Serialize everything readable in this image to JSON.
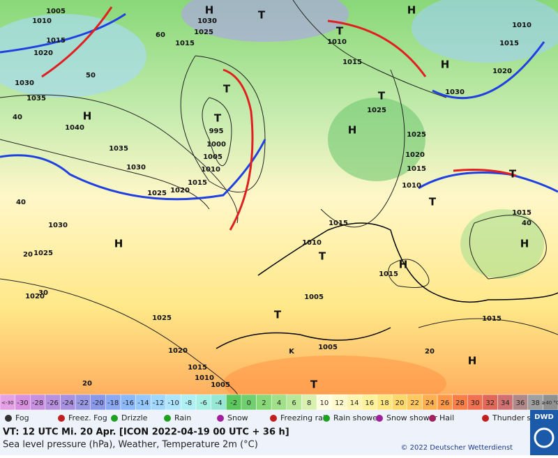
{
  "map": {
    "labels": [
      "H",
      "T",
      "H",
      "T",
      "1005",
      "1010",
      "1015",
      "1020",
      "1030",
      "1025",
      "1015",
      "1010",
      "1015",
      "1010",
      "1015",
      "1020",
      "1030",
      "H",
      "1030",
      "1035",
      "H",
      "1040",
      "1035",
      "1030",
      "1025",
      "1020",
      "T",
      "T",
      "995",
      "1000",
      "1005",
      "1010",
      "1015",
      "T",
      "1025",
      "H",
      "1025",
      "1020",
      "1015",
      "1010",
      "T",
      "T",
      "1030",
      "1025",
      "H",
      "1015",
      "1010",
      "T",
      "H",
      "1015",
      "1015",
      "H",
      "1005",
      "T",
      "1015",
      "1025",
      "1020",
      "1015",
      "1010",
      "1005",
      "1005",
      "K",
      "H",
      "T",
      "1020",
      "40",
      "50",
      "60",
      "40",
      "30",
      "20",
      "20",
      "40",
      "20"
    ]
  },
  "temperature_scale": {
    "labels": [
      "<-30",
      -30,
      -28,
      -26,
      -24,
      -22,
      -20,
      -18,
      -16,
      -14,
      -12,
      -10,
      -8,
      -6,
      -4,
      -2,
      0,
      2,
      4,
      6,
      8,
      10,
      12,
      14,
      16,
      18,
      20,
      22,
      24,
      26,
      28,
      30,
      32,
      34,
      36,
      38,
      "≥40 °C"
    ],
    "colors": [
      "#e6a0e6",
      "#d890e0",
      "#c890e0",
      "#b890e0",
      "#a890e0",
      "#9898e4",
      "#8a98ec",
      "#8aa8f4",
      "#8cb8fc",
      "#94c8ff",
      "#a0d8ff",
      "#aee6ff",
      "#aef0f4",
      "#a6f0e4",
      "#96e8d4",
      "#5cc85c",
      "#70d070",
      "#88d878",
      "#a0e088",
      "#b8e898",
      "#d8f0b0",
      "#ffffe0",
      "#fffacc",
      "#fff4b0",
      "#fff09a",
      "#ffe680",
      "#ffd86c",
      "#ffc860",
      "#ffb050",
      "#ff9848",
      "#f88048",
      "#f07050",
      "#e06858",
      "#d07070",
      "#b08888",
      "#a0a0a0",
      "#909090"
    ]
  },
  "legend": [
    "Fog",
    "Freez. Fog",
    "Drizzle",
    "Rain",
    "Snow",
    "Freezing rain",
    "Rain shower",
    "Snow shower",
    "Hail",
    "Thunder storm"
  ],
  "footer": {
    "valid_time": "VT: 12 UTC Mi.  20 Apr. [ICON 2022-04-19  00 UTC + 36 h]",
    "description": "Sea level pressure (hPa), Weather, Temperature 2m (°C)",
    "copyright": "© 2022 Deutscher Wetterdienst",
    "logo": "DWD"
  }
}
